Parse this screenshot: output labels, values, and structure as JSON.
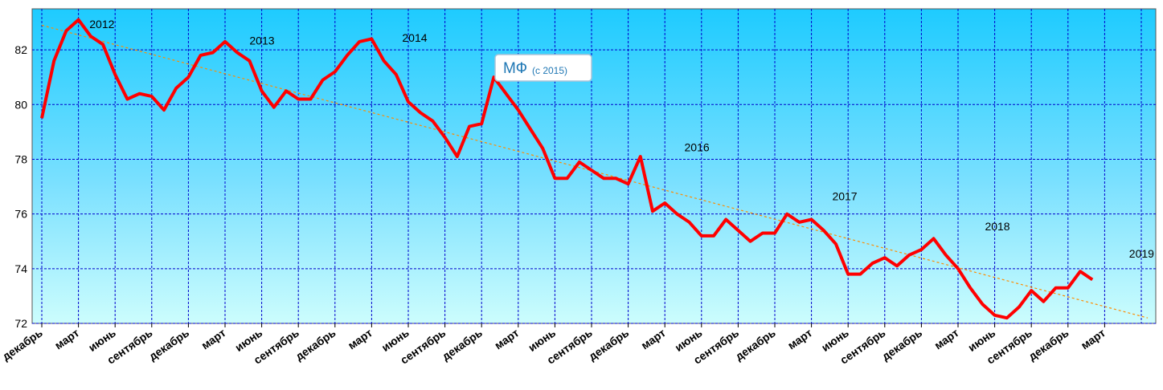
{
  "chart_data": {
    "type": "line",
    "ylim": [
      72,
      83.5
    ],
    "yticks": [
      72,
      74,
      76,
      78,
      80,
      82
    ],
    "grid": true,
    "x_tick_labels": [
      "декабрь",
      "март",
      "июнь",
      "сентябрь",
      "декабрь",
      "март",
      "июнь",
      "сентябрь",
      "декабрь",
      "март",
      "июнь",
      "сентябрь",
      "декабрь",
      "март",
      "июнь",
      "сентябрь",
      "декабрь",
      "март",
      "июнь",
      "сентябрь",
      "декабрь",
      "март",
      "июнь",
      "сентябрь",
      "декабрь",
      "март",
      "июнь",
      "сентябрь",
      "декабрь",
      "март"
    ],
    "series": [
      {
        "color": "#ff0000",
        "values": [
          79.5,
          81.6,
          82.7,
          83.1,
          82.5,
          82.2,
          81.1,
          80.2,
          80.4,
          80.3,
          79.8,
          80.6,
          81.0,
          81.8,
          81.9,
          82.3,
          81.9,
          81.6,
          80.5,
          79.9,
          80.5,
          80.2,
          80.2,
          80.9,
          81.2,
          81.8,
          82.3,
          82.4,
          81.6,
          81.1,
          80.1,
          79.7,
          79.4,
          78.8,
          78.1,
          79.2,
          79.3,
          81.0,
          80.4,
          79.8,
          79.1,
          78.4,
          77.3,
          77.3,
          77.9,
          77.6,
          77.3,
          77.3,
          77.1,
          78.1,
          76.1,
          76.4,
          76.0,
          75.7,
          75.2,
          75.2,
          75.8,
          75.4,
          75.0,
          75.3,
          75.3,
          76.0,
          75.7,
          75.8,
          75.4,
          74.9,
          73.8,
          73.8,
          74.2,
          74.4,
          74.1,
          74.5,
          74.7,
          75.1,
          74.5,
          74.0,
          73.3,
          72.7,
          72.3,
          72.2,
          72.6,
          73.2,
          72.8,
          73.3,
          73.3,
          73.9,
          73.6
        ]
      }
    ],
    "trendline": {
      "color": "#ff8c00",
      "start": 82.9,
      "end": 72.2
    },
    "annotations": [
      {
        "text": "2012",
        "x_index": 3.9,
        "y": 82.8
      },
      {
        "text": "2013",
        "x_index": 17.0,
        "y": 82.2
      },
      {
        "text": "2014",
        "x_index": 29.5,
        "y": 82.3
      },
      {
        "text": "2016",
        "x_index": 52.6,
        "y": 78.3
      },
      {
        "text": "2017",
        "x_index": 64.7,
        "y": 76.5
      },
      {
        "text": "2018",
        "x_index": 77.2,
        "y": 75.4
      },
      {
        "text": "2019",
        "x_index": 89.0,
        "y": 74.4
      }
    ],
    "label_box": {
      "title": "МФ",
      "subtitle": "(с 2015)"
    }
  }
}
